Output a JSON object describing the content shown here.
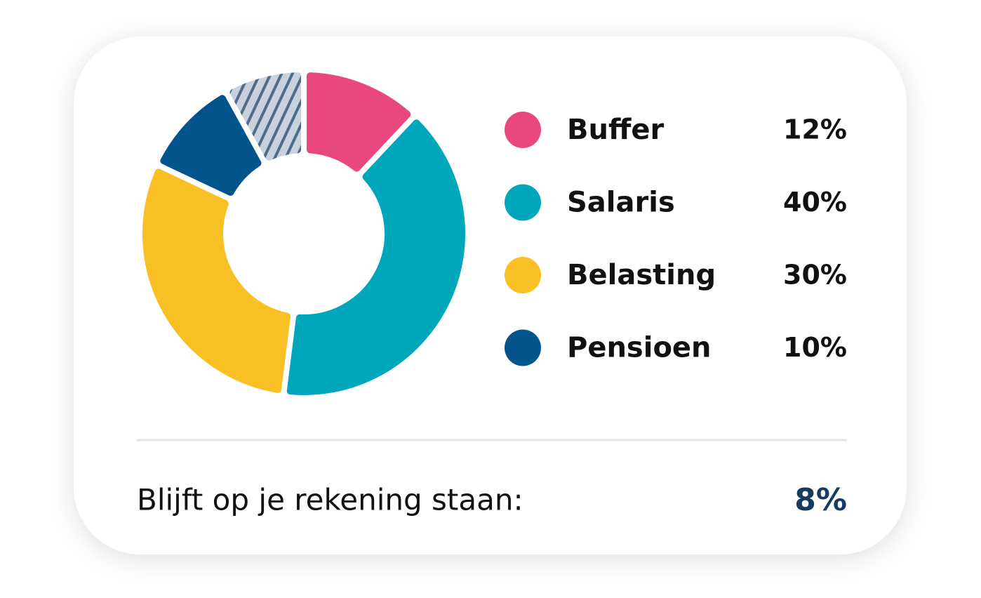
{
  "chart_data": {
    "type": "pie",
    "categories": [
      "Buffer",
      "Salaris",
      "Belasting",
      "Pensioen"
    ],
    "values": [
      12,
      40,
      30,
      10
    ],
    "value_labels": [
      "12%",
      "40%",
      "30%",
      "10%"
    ],
    "colors": [
      "#e8477f",
      "#00a7ba",
      "#f8c025",
      "#03548a"
    ],
    "remainder": {
      "label": "Blijft op je rekening staan:",
      "value": 8,
      "value_label": "8%"
    }
  }
}
